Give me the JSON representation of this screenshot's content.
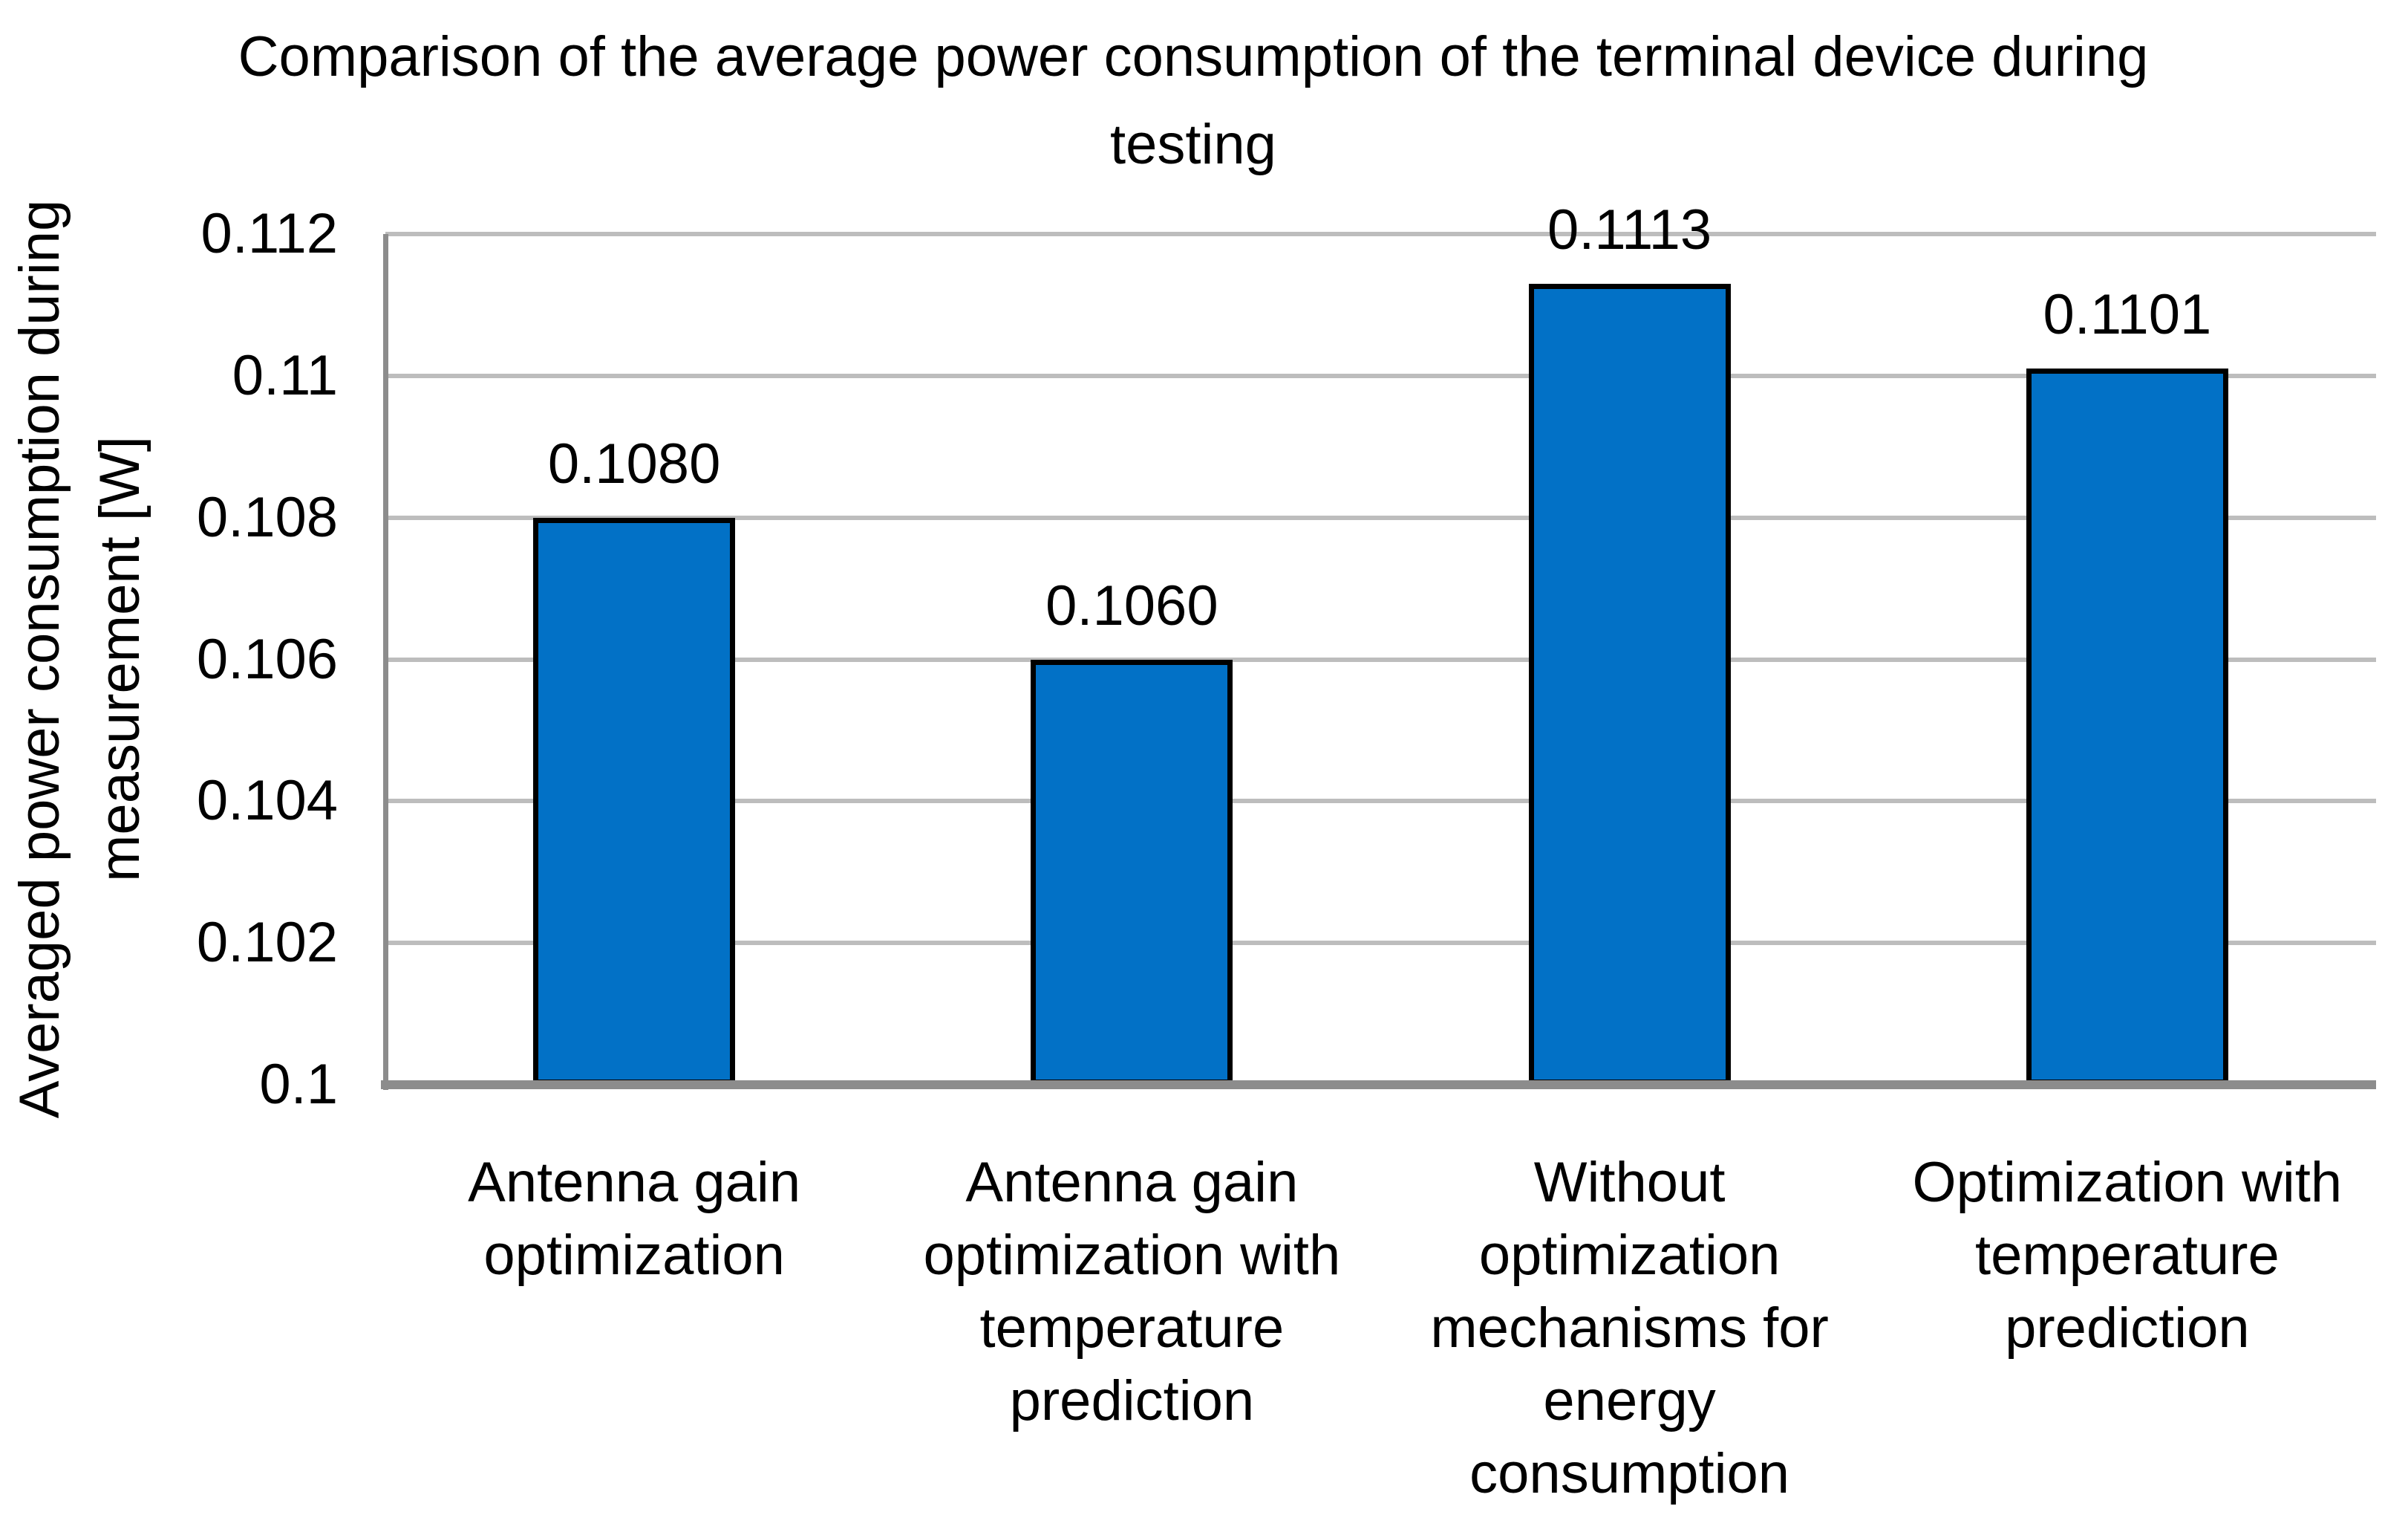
{
  "chart_data": {
    "type": "bar",
    "title": "Comparison of the average power consumption of the terminal device during testing",
    "title_lines": [
      "Comparison of the average power consumption of the terminal device during",
      "testing"
    ],
    "ylabel": "Averaged power consumption during measurement [W]",
    "ylabel_lines": [
      "Averaged power consumption during",
      "measurement [W]"
    ],
    "xlabel": "",
    "categories": [
      "Antenna gain optimization",
      "Antenna gain optimization with temperature prediction",
      "Without optimization mechanisms for energy consumption",
      "Optimization with temperature prediction"
    ],
    "values": [
      0.108,
      0.106,
      0.1113,
      0.1101
    ],
    "data_labels": [
      "0.1080",
      "0.1060",
      "0.1113",
      "0.1101"
    ],
    "yticks": [
      "0.112",
      "0.11",
      "0.108",
      "0.106",
      "0.104",
      "0.102",
      "0.1"
    ],
    "ylim": [
      0.1,
      0.112
    ],
    "grid": true,
    "legend_position": "none",
    "colors": {
      "bar_fill": "#0271C6",
      "bar_border": "#000000",
      "gridline": "#BDBDBD",
      "axis_line": "#8C8C8C",
      "text": "#000000",
      "background": "#FFFFFF"
    }
  }
}
